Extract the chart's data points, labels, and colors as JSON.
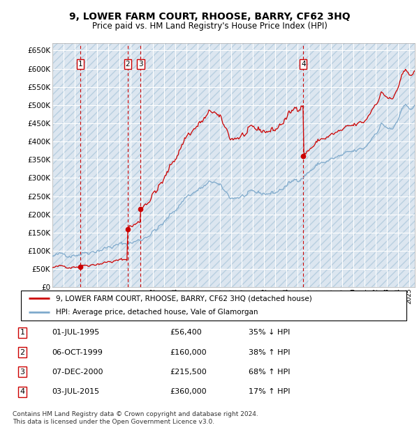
{
  "title": "9, LOWER FARM COURT, RHOOSE, BARRY, CF62 3HQ",
  "subtitle": "Price paid vs. HM Land Registry's House Price Index (HPI)",
  "ylim": [
    0,
    670000
  ],
  "yticks": [
    0,
    50000,
    100000,
    150000,
    200000,
    250000,
    300000,
    350000,
    400000,
    450000,
    500000,
    550000,
    600000,
    650000
  ],
  "xlim_start": 1993.0,
  "xlim_end": 2025.5,
  "plot_bg_color": "#dce6f0",
  "hatch_color": "#c0cfe0",
  "grid_color": "#ffffff",
  "sale_dates": [
    1995.5,
    1999.75,
    2000.917,
    2015.5
  ],
  "sale_prices": [
    56400,
    160000,
    215500,
    360000
  ],
  "sale_labels": [
    "1",
    "2",
    "3",
    "4"
  ],
  "legend_line1": "9, LOWER FARM COURT, RHOOSE, BARRY, CF62 3HQ (detached house)",
  "legend_line2": "HPI: Average price, detached house, Vale of Glamorgan",
  "table_rows": [
    [
      "1",
      "01-JUL-1995",
      "£56,400",
      "35% ↓ HPI"
    ],
    [
      "2",
      "06-OCT-1999",
      "£160,000",
      "38% ↑ HPI"
    ],
    [
      "3",
      "07-DEC-2000",
      "£215,500",
      "68% ↑ HPI"
    ],
    [
      "4",
      "03-JUL-2015",
      "£360,000",
      "17% ↑ HPI"
    ]
  ],
  "footer": "Contains HM Land Registry data © Crown copyright and database right 2024.\nThis data is licensed under the Open Government Licence v3.0.",
  "line_color": "#cc0000",
  "hpi_color": "#7faacc",
  "vline_color": "#cc0000",
  "box_color": "#cc0000"
}
